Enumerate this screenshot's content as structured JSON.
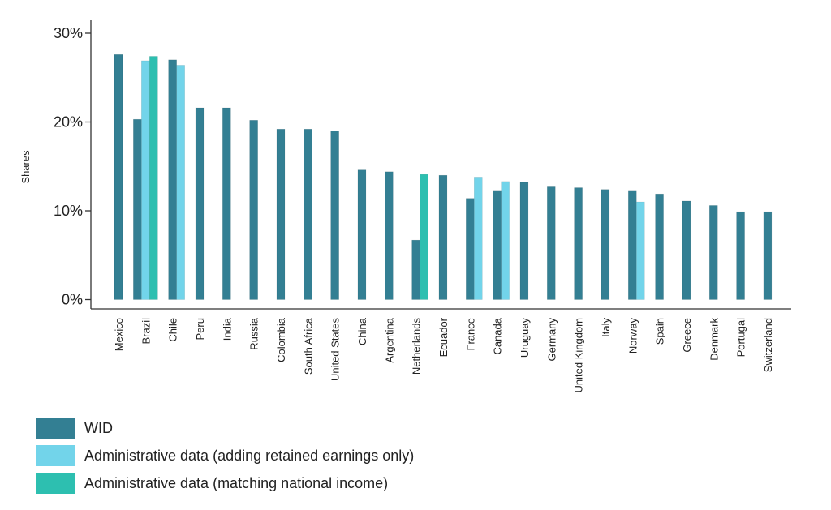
{
  "chart_data": {
    "type": "bar",
    "title": "",
    "xlabel": "",
    "ylabel": "Shares",
    "ylim": [
      0,
      30
    ],
    "yticks": [
      0,
      10,
      20,
      30
    ],
    "ytick_labels": [
      "0%",
      "10%",
      "20%",
      "30%"
    ],
    "grid": false,
    "legend_placement": "bottom-left",
    "categories": [
      "Mexico",
      "Brazil",
      "Chile",
      "Peru",
      "India",
      "Russia",
      "Colombia",
      "South Africa",
      "United States",
      "China",
      "Argentina",
      "Netherlands",
      "Ecuador",
      "France",
      "Canada",
      "Uruguay",
      "Germany",
      "United Kingdom",
      "Italy",
      "Norway",
      "Spain",
      "Greece",
      "Denmark",
      "Portugal",
      "Switzerland"
    ],
    "series": [
      {
        "name": "WID",
        "color": "#337f93",
        "values": [
          27.6,
          20.3,
          27.0,
          21.6,
          21.6,
          20.2,
          19.2,
          19.2,
          19.0,
          14.6,
          14.4,
          6.7,
          14.0,
          11.4,
          12.3,
          13.2,
          12.7,
          12.6,
          12.4,
          12.3,
          11.9,
          11.1,
          10.6,
          9.9,
          9.9
        ]
      },
      {
        "name": "Administrative data (adding retained earnings only)",
        "color": "#72d4ea",
        "values": [
          null,
          26.9,
          26.4,
          null,
          null,
          null,
          null,
          null,
          null,
          null,
          null,
          null,
          null,
          13.8,
          13.3,
          null,
          null,
          null,
          null,
          11.0,
          null,
          null,
          null,
          null,
          null
        ]
      },
      {
        "name": "Administrative data (matching national income)",
        "color": "#2dbfb0",
        "values": [
          null,
          27.4,
          null,
          null,
          null,
          null,
          null,
          null,
          null,
          null,
          null,
          14.1,
          null,
          null,
          null,
          null,
          null,
          null,
          null,
          null,
          null,
          null,
          null,
          null,
          null
        ]
      }
    ]
  }
}
